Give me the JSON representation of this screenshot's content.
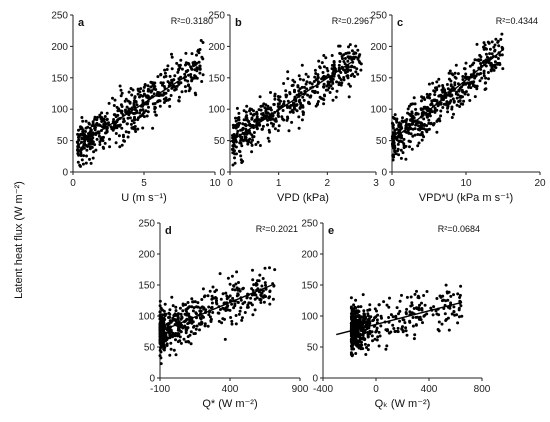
{
  "figure": {
    "ylabel": "Latent heat flux (W m⁻²)"
  },
  "chart_data": [
    {
      "type": "scatter",
      "panel": "a",
      "xlabel": "U (m s⁻¹)",
      "r2": "R²=0.3180",
      "xlim": [
        0,
        10
      ],
      "ylim": [
        0,
        250
      ],
      "xticks": [
        "0",
        "5",
        "10"
      ],
      "yticks": [
        "0",
        "50",
        "100",
        "150",
        "200",
        "250"
      ],
      "xtick_values": [
        0,
        5,
        10
      ],
      "ytick_values": [
        0,
        50,
        100,
        150,
        200,
        250
      ],
      "fit": [
        [
          0.3,
          42
        ],
        [
          8.0,
          153
        ]
      ],
      "cloud": {
        "x_range": [
          0.3,
          9.2
        ],
        "y_range": [
          0,
          220
        ],
        "n": 520
      }
    },
    {
      "type": "scatter",
      "panel": "b",
      "xlabel": "VPD (kPa)",
      "r2": "R²=0.2967",
      "xlim": [
        0,
        3
      ],
      "ylim": [
        0,
        250
      ],
      "xticks": [
        "0",
        "1",
        "2",
        "3"
      ],
      "yticks": [
        "0",
        "50",
        "100",
        "150",
        "200",
        "250"
      ],
      "xtick_values": [
        0,
        1,
        2,
        3
      ],
      "ytick_values": [
        0,
        50,
        100,
        150,
        200,
        250
      ],
      "fit": [
        [
          0.0,
          48
        ],
        [
          2.5,
          175
        ]
      ],
      "cloud": {
        "x_range": [
          0.05,
          2.7
        ],
        "y_range": [
          0,
          220
        ],
        "n": 520
      }
    },
    {
      "type": "scatter",
      "panel": "c",
      "xlabel": "VPD*U (kPa m s⁻¹)",
      "r2": "R²=0.4344",
      "xlim": [
        0,
        20
      ],
      "ylim": [
        0,
        250
      ],
      "xticks": [
        "0",
        "10",
        "20"
      ],
      "yticks": [
        "0",
        "50",
        "100",
        "150",
        "200",
        "250"
      ],
      "xtick_values": [
        0,
        10,
        20
      ],
      "ytick_values": [
        0,
        50,
        100,
        150,
        200,
        250
      ],
      "fit": [
        [
          0.0,
          50
        ],
        [
          15,
          195
        ]
      ],
      "cloud": {
        "x_range": [
          0.05,
          15
        ],
        "y_range": [
          0,
          220
        ],
        "n": 520
      }
    },
    {
      "type": "scatter",
      "panel": "d",
      "xlabel": "Q* (W m⁻²)",
      "r2": "R²=0.2021",
      "xlim": [
        -100,
        900
      ],
      "ylim": [
        0,
        250
      ],
      "xticks": [
        "-100",
        "400",
        "900"
      ],
      "yticks": [
        "0",
        "50",
        "100",
        "150",
        "200",
        "250"
      ],
      "xtick_values": [
        -100,
        400,
        900
      ],
      "ytick_values": [
        0,
        50,
        100,
        150,
        200,
        250
      ],
      "fit": [
        [
          -100,
          75
        ],
        [
          700,
          150
        ]
      ],
      "cloud": {
        "x_range": [
          -100,
          720
        ],
        "y_range": [
          0,
          220
        ],
        "n": 520
      }
    },
    {
      "type": "scatter",
      "panel": "e",
      "xlabel": "Qₖ (W m⁻²)",
      "r2": "R²=0.0684",
      "xlim": [
        -400,
        800
      ],
      "ylim": [
        0,
        250
      ],
      "xticks": [
        "-400",
        "0",
        "400",
        "800"
      ],
      "yticks": [
        "0",
        "50",
        "100",
        "150",
        "200",
        "250"
      ],
      "xtick_values": [
        -400,
        0,
        400,
        800
      ],
      "ytick_values": [
        0,
        50,
        100,
        150,
        200,
        250
      ],
      "fit": [
        [
          -300,
          70
        ],
        [
          650,
          122
        ]
      ],
      "cloud": {
        "x_range": [
          -300,
          650
        ],
        "y_range": [
          0,
          220
        ],
        "n": 520
      }
    }
  ]
}
